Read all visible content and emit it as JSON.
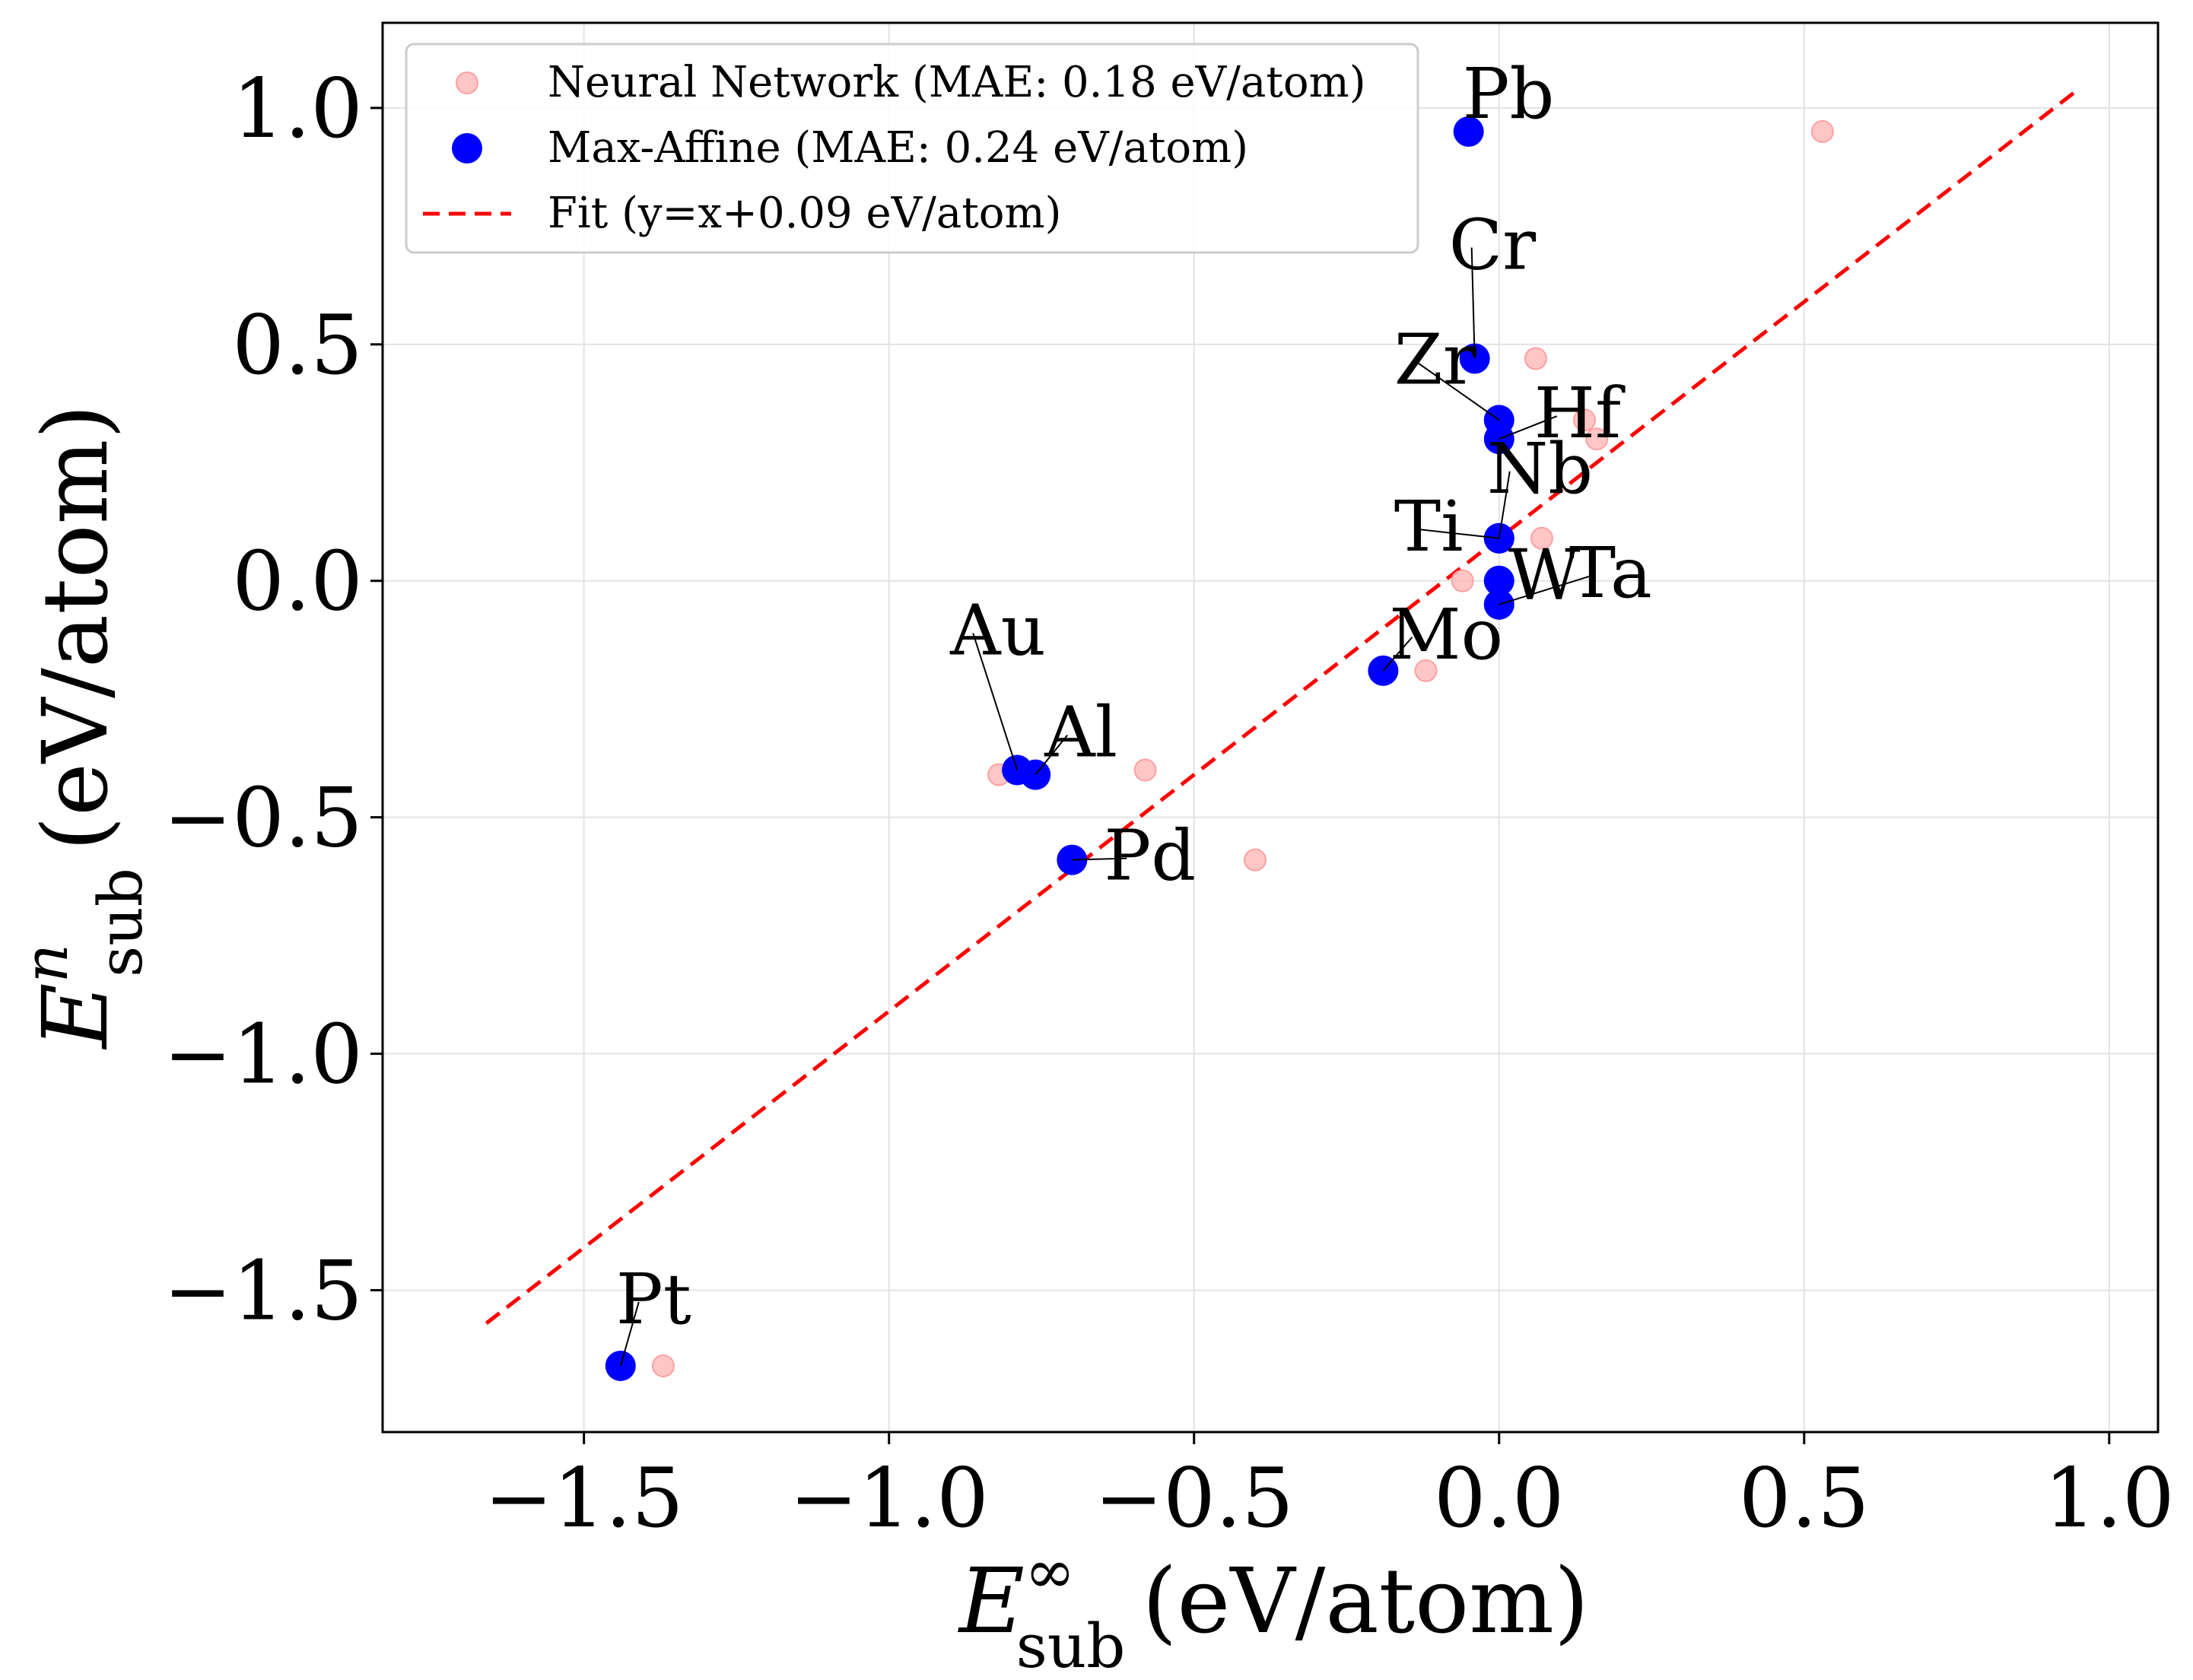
{
  "chart_data": {
    "type": "scatter",
    "xlabel": {
      "symbol": "E",
      "superscript": "∞",
      "subscript": "sub",
      "unit": "(eV/atom)"
    },
    "ylabel": {
      "symbol": "E",
      "superscript": "n",
      "subscript": "sub",
      "unit": "(eV/atom)"
    },
    "xlim": [
      -1.83,
      1.08
    ],
    "ylim": [
      -1.8,
      1.18
    ],
    "x_ticks": [
      -1.5,
      -1.0,
      -0.5,
      0.0,
      0.5,
      1.0
    ],
    "y_ticks": [
      -1.5,
      -1.0,
      -0.5,
      0.0,
      0.5,
      1.0
    ],
    "x_tick_labels": [
      "−1.5",
      "−1.0",
      "−0.5",
      "0.0",
      "0.5",
      "1.0"
    ],
    "y_tick_labels": [
      "−1.5",
      "−1.0",
      "−0.5",
      "0.0",
      "0.5",
      "1.0"
    ],
    "grid": true,
    "legend": {
      "placement": "top-left",
      "entries": [
        {
          "label": "Neural Network (MAE: 0.18 eV/atom)",
          "marker": "circle-small",
          "color": "#ffb3b3"
        },
        {
          "label": "Max-Affine (MAE: 0.24 eV/atom)",
          "marker": "circle-large",
          "color": "#0000ff"
        },
        {
          "label": "Fit (y=x+0.09 eV/atom)",
          "marker": "dashed-line",
          "color": "#ff0000"
        }
      ]
    },
    "series": [
      {
        "name": "Neural Network (MAE: 0.18 eV/atom)",
        "color": "#ffb3b3",
        "points": [
          {
            "x": 0.53,
            "y": 0.95
          },
          {
            "x": 0.06,
            "y": 0.47
          },
          {
            "x": 0.14,
            "y": 0.34
          },
          {
            "x": 0.16,
            "y": 0.3
          },
          {
            "x": 0.07,
            "y": 0.09
          },
          {
            "x": -0.06,
            "y": 0.0
          },
          {
            "x": -0.12,
            "y": -0.19
          },
          {
            "x": -0.82,
            "y": -0.41
          },
          {
            "x": -0.58,
            "y": -0.4
          },
          {
            "x": -0.4,
            "y": -0.59
          },
          {
            "x": -1.37,
            "y": -1.66
          }
        ]
      },
      {
        "name": "Max-Affine (MAE: 0.24 eV/atom)",
        "color": "#0000ff",
        "points": [
          {
            "label": "Pb",
            "x": -0.05,
            "y": 0.95
          },
          {
            "label": "Cr",
            "x": -0.04,
            "y": 0.47
          },
          {
            "label": "Zr",
            "x": 0.0,
            "y": 0.34
          },
          {
            "label": "Hf",
            "x": 0.0,
            "y": 0.3
          },
          {
            "label": "Nb",
            "x": 0.0,
            "y": 0.09
          },
          {
            "label": "Ti",
            "x": 0.0,
            "y": 0.09
          },
          {
            "label": "W",
            "x": 0.0,
            "y": 0.0
          },
          {
            "label": "Ta",
            "x": 0.0,
            "y": -0.05
          },
          {
            "label": "Mo",
            "x": -0.19,
            "y": -0.19
          },
          {
            "label": "Au",
            "x": -0.79,
            "y": -0.4
          },
          {
            "label": "Al",
            "x": -0.76,
            "y": -0.41
          },
          {
            "label": "Pd",
            "x": -0.7,
            "y": -0.59
          },
          {
            "label": "Pt",
            "x": -1.44,
            "y": -1.66
          }
        ]
      }
    ],
    "fit_line": {
      "name": "Fit (y=x+0.09 eV/atom)",
      "color": "#ff0000",
      "x": [
        -1.66,
        0.95
      ],
      "y": [
        -1.57,
        1.04
      ]
    }
  }
}
